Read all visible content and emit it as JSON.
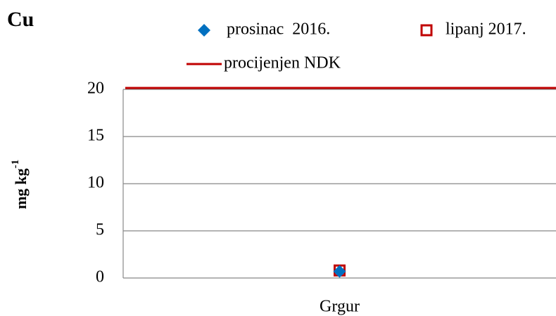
{
  "chart_data": {
    "type": "scatter",
    "title": "Cu",
    "y_label": "mg kg",
    "y_label_sup": "-1",
    "categories": [
      "Grgur"
    ],
    "series": [
      {
        "name": "lipanj 2017.",
        "color": "#c00000",
        "marker": "square",
        "values": [
          0.8
        ]
      },
      {
        "name": "prosinac  2016.",
        "color": "#0070c0",
        "marker": "diamond",
        "values": [
          0.7
        ]
      }
    ],
    "reference_lines": [
      {
        "name": "procijenjen NDK",
        "color": "#c00000",
        "value": 20
      }
    ],
    "ylim": [
      0,
      20
    ],
    "yticks": [
      0,
      5,
      10,
      15,
      20
    ],
    "grid": true
  }
}
